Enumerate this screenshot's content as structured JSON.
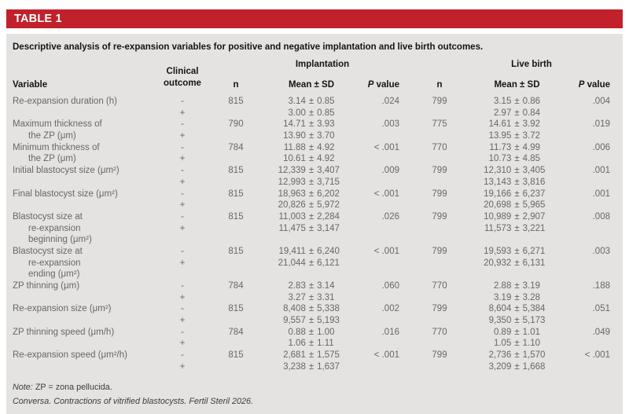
{
  "colors": {
    "accent_red": "#c1212a",
    "panel_gray": "#e4e3e2",
    "body_text_gray": "#676766"
  },
  "table": {
    "tag": "TABLE 1",
    "caption": "Descriptive analysis of re-expansion variables for positive and negative implantation and live birth outcomes.",
    "groups": {
      "implantation": "Implantation",
      "live_birth": "Live birth"
    },
    "columns": {
      "variable": "Variable",
      "clinical_outcome": "Clinical outcome",
      "n": "n",
      "mean_sd": "Mean ± SD",
      "p_italic": "P",
      "p_rest": "value"
    },
    "rows": [
      {
        "variable_lines": [
          "Re-expansion duration (h)"
        ],
        "outcomes": [
          "-",
          "+"
        ],
        "imp": {
          "n": "815",
          "means": [
            "3.14 ± 0.85",
            "3.00 ± 0.85"
          ],
          "p": ".024"
        },
        "lb": {
          "n": "799",
          "means": [
            "3.15 ± 0.86",
            "2.97 ± 0.84"
          ],
          "p": ".004"
        }
      },
      {
        "variable_lines": [
          "Maximum thickness of",
          "the ZP (μm)"
        ],
        "outcomes": [
          "-",
          "+"
        ],
        "imp": {
          "n": "790",
          "means": [
            "14.71 ± 3.93",
            "13.90 ± 3.70"
          ],
          "p": ".003"
        },
        "lb": {
          "n": "775",
          "means": [
            "14.61 ± 3.92",
            "13.95 ± 3.72"
          ],
          "p": ".019"
        }
      },
      {
        "variable_lines": [
          "Minimum thickness of",
          "the ZP (μm)"
        ],
        "outcomes": [
          "-",
          "+"
        ],
        "imp": {
          "n": "784",
          "means": [
            "11.88 ± 4.92",
            "10.61 ± 4.92"
          ],
          "p": "< .001"
        },
        "lb": {
          "n": "770",
          "means": [
            "11.73 ± 4.99",
            "10.73 ± 4.85"
          ],
          "p": ".006"
        }
      },
      {
        "variable_lines": [
          "Initial blastocyst size (μm²)"
        ],
        "outcomes": [
          "-",
          "+"
        ],
        "imp": {
          "n": "815",
          "means": [
            "12,339 ± 3,407",
            "12,993 ± 3,715"
          ],
          "p": ".009"
        },
        "lb": {
          "n": "799",
          "means": [
            "12,310 ± 3,405",
            "13,143 ± 3,816"
          ],
          "p": ".001"
        }
      },
      {
        "variable_lines": [
          "Final blastocyst size (μm²)"
        ],
        "outcomes": [
          "-",
          "+"
        ],
        "imp": {
          "n": "815",
          "means": [
            "18,963 ± 6,202",
            "20,826 ± 5,972"
          ],
          "p": "< .001"
        },
        "lb": {
          "n": "799",
          "means": [
            "19,166 ± 6,237",
            "20,698 ± 5,965"
          ],
          "p": ".001"
        }
      },
      {
        "variable_lines": [
          "Blastocyst size at",
          "re-expansion",
          "beginning (μm²)"
        ],
        "outcomes": [
          "-",
          "+"
        ],
        "imp": {
          "n": "815",
          "means": [
            "11,003 ± 2,284",
            "11,475 ± 3,147"
          ],
          "p": ".026"
        },
        "lb": {
          "n": "799",
          "means": [
            "10,989 ± 2,907",
            "11,573 ± 3,221"
          ],
          "p": ".008"
        }
      },
      {
        "variable_lines": [
          "Blastocyst size at",
          "re-expansion",
          "ending (μm²)"
        ],
        "outcomes": [
          "-",
          "+"
        ],
        "imp": {
          "n": "815",
          "means": [
            "19,411 ± 6,240",
            "21,044 ± 6,121"
          ],
          "p": "< .001"
        },
        "lb": {
          "n": "799",
          "means": [
            "19,593 ± 6,271",
            "20,932 ± 6,131"
          ],
          "p": ".003"
        }
      },
      {
        "variable_lines": [
          "ZP thinning (μm)"
        ],
        "outcomes": [
          "-",
          "+"
        ],
        "imp": {
          "n": "784",
          "means": [
            "2.83 ± 3.14",
            "3.27 ± 3.31"
          ],
          "p": ".060"
        },
        "lb": {
          "n": "770",
          "means": [
            "2.88 ± 3.19",
            "3.19 ± 3.28"
          ],
          "p": ".188"
        }
      },
      {
        "variable_lines": [
          "Re-expansion size (μm²)"
        ],
        "outcomes": [
          "-",
          "+"
        ],
        "imp": {
          "n": "815",
          "means": [
            "8,408 ± 5,338",
            "9,557 ± 5,193"
          ],
          "p": ".002"
        },
        "lb": {
          "n": "799",
          "means": [
            "8,604 ± 5,384",
            "9,350 ± 5,173"
          ],
          "p": ".051"
        }
      },
      {
        "variable_lines": [
          "ZP thinning speed (μm/h)"
        ],
        "outcomes": [
          "-",
          "+"
        ],
        "imp": {
          "n": "784",
          "means": [
            "0.88 ± 1.00",
            "1.06 ± 1.11"
          ],
          "p": ".016"
        },
        "lb": {
          "n": "770",
          "means": [
            "0.89 ± 1.01",
            "1.05 ± 1.10"
          ],
          "p": ".049"
        }
      },
      {
        "variable_lines": [
          "Re-expansion speed (μm²/h)"
        ],
        "outcomes": [
          "-",
          "+"
        ],
        "imp": {
          "n": "815",
          "means": [
            "2,681 ± 1,575",
            "3,238 ± 1,637"
          ],
          "p": "< .001"
        },
        "lb": {
          "n": "799",
          "means": [
            "2,736 ± 1,570",
            "3,209 ± 1,668"
          ],
          "p": "< .001"
        }
      }
    ],
    "notes": {
      "note_label": "Note:",
      "note_text": "ZP = zona pellucida.",
      "citation": "Conversa. Contractions of vitrified blastocysts. Fertil Steril 2026."
    }
  }
}
